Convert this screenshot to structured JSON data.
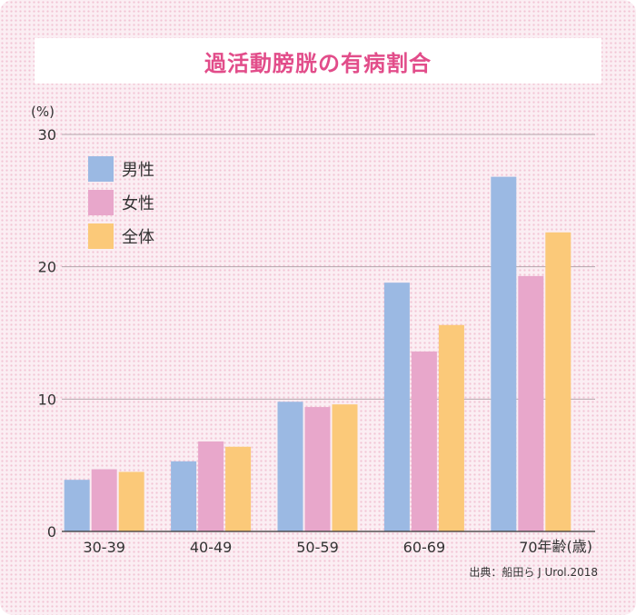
{
  "title": "過活動膀胱の有病割合",
  "chart_data": {
    "type": "bar",
    "categories": [
      "30-39",
      "40-49",
      "50-59",
      "60-69",
      "70-"
    ],
    "series": [
      {
        "name": "男性",
        "values": [
          3.9,
          5.3,
          9.8,
          18.8,
          26.8
        ]
      },
      {
        "name": "女性",
        "values": [
          4.7,
          6.8,
          9.4,
          13.6,
          19.3
        ]
      },
      {
        "name": "全体",
        "values": [
          4.5,
          6.4,
          9.6,
          15.6,
          22.6
        ]
      }
    ],
    "ylabel": "(%)",
    "xlabel": "年齢(歳)",
    "ylim": [
      0,
      30
    ],
    "yticks": [
      0,
      10,
      20,
      30
    ],
    "grid": true,
    "legend_position": "top-left",
    "colors": [
      "#9bb9e3",
      "#e8a7cb",
      "#fbc979"
    ]
  },
  "source": "出典：船田ら J Urol.2018"
}
